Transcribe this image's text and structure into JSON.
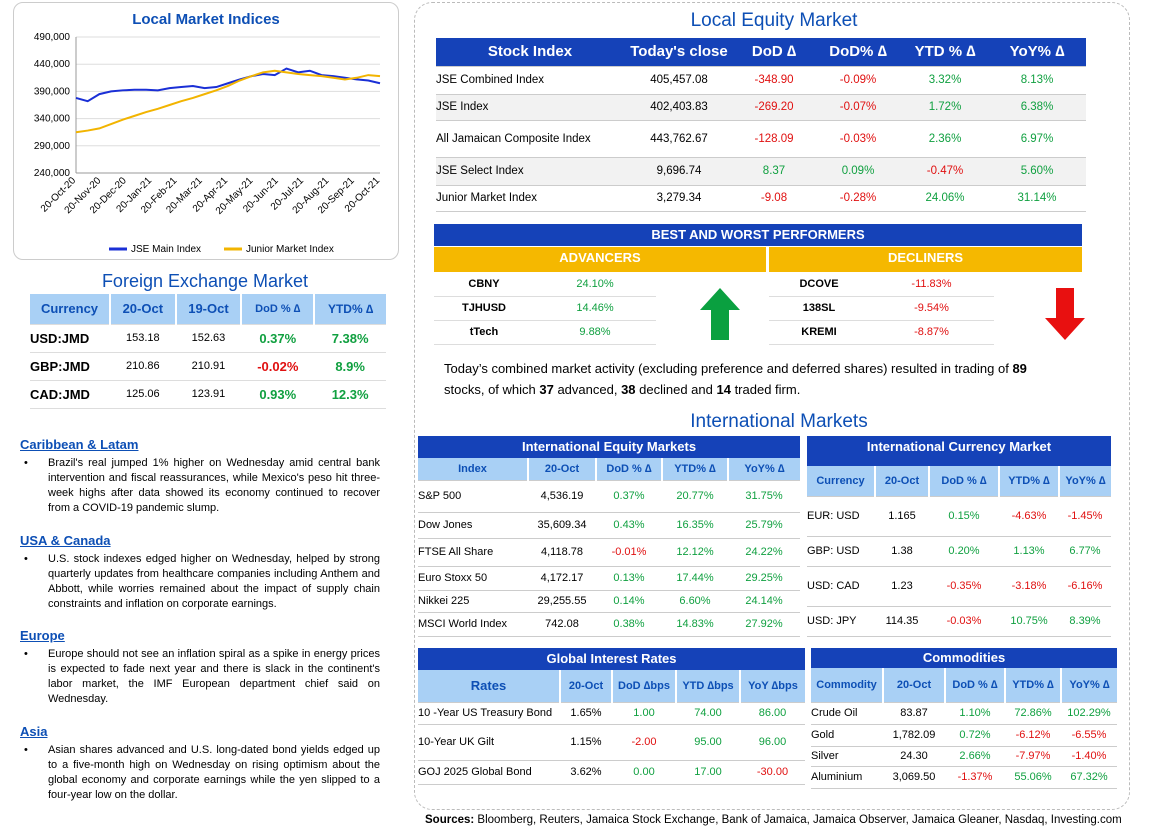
{
  "chart": {
    "title": "Local Market Indices",
    "legend": [
      "JSE Main Index",
      "Junior Market Index"
    ],
    "colors": {
      "main": "#1a2fd6",
      "junior": "#f2b400"
    }
  },
  "chart_data": {
    "type": "line",
    "title": "Local Market Indices",
    "ylim": [
      240000,
      490000
    ],
    "yticks": [
      "490,000",
      "440,000",
      "390,000",
      "340,000",
      "290,000",
      "240,000"
    ],
    "xticks": [
      "20-Oct-20",
      "20-Nov-20",
      "20-Dec-20",
      "20-Jan-21",
      "20-Feb-21",
      "20-Mar-21",
      "20-Apr-21",
      "20-May-21",
      "20-Jun-21",
      "20-Jul-21",
      "20-Aug-21",
      "20-Sep-21",
      "20-Oct-21"
    ],
    "series": [
      {
        "name": "JSE Main Index",
        "values": [
          378000,
          372000,
          385000,
          390000,
          392000,
          393000,
          393000,
          392000,
          396000,
          398000,
          400000,
          396000,
          398000,
          405000,
          412000,
          418000,
          422000,
          420000,
          432000,
          425000,
          428000,
          420000,
          418000,
          415000,
          412000,
          410000,
          405000
        ]
      },
      {
        "name": "Junior Market Index",
        "values": [
          315000,
          318000,
          322000,
          330000,
          338000,
          345000,
          352000,
          358000,
          365000,
          372000,
          378000,
          385000,
          392000,
          400000,
          410000,
          418000,
          425000,
          428000,
          425000,
          422000,
          420000,
          418000,
          415000,
          412000,
          415000,
          420000,
          418000
        ]
      }
    ]
  },
  "fx": {
    "title": "Foreign Exchange Market",
    "headers": [
      "Currency",
      "20-Oct",
      "19-Oct",
      "DoD % ∆",
      "YTD% ∆"
    ],
    "rows": [
      [
        "USD:JMD",
        "153.18",
        "152.63",
        "0.37%",
        "7.38%"
      ],
      [
        "GBP:JMD",
        "210.86",
        "210.91",
        "-0.02%",
        "8.9%"
      ],
      [
        "CAD:JMD",
        "125.06",
        "123.91",
        "0.93%",
        "12.3%"
      ]
    ]
  },
  "news": [
    {
      "title": "Caribbean & Latam",
      "text": "Brazil's real jumped 1% higher on Wednesday amid central bank intervention and fiscal reassurances, while Mexico's peso hit three-week highs after data showed its economy continued to recover from a COVID-19 pandemic slump."
    },
    {
      "title": "USA & Canada",
      "text": "U.S. stock indexes edged higher on Wednesday, helped by strong quarterly updates from healthcare companies including Anthem and Abbott, while worries remained about the impact of supply chain constraints and inflation on corporate earnings."
    },
    {
      "title": "Europe",
      "text": "Europe should not see an inflation spiral as a spike in energy prices is expected to fade next year and there is slack in the continent's labor market, the IMF European department chief said on Wednesday."
    },
    {
      "title": "Asia",
      "text": "Asian shares advanced and U.S. long-dated bond yields edged up to a five-month high on Wednesday on rising optimism about the global economy and corporate earnings while the yen slipped to a four-year low on the dollar."
    }
  ],
  "equity": {
    "title": "Local Equity Market",
    "headers": [
      "Stock Index",
      "Today's close",
      "DoD  ∆",
      "DoD% ∆",
      "YTD % ∆",
      "YoY% ∆"
    ],
    "rows": [
      [
        "JSE Combined Index",
        "405,457.08",
        "-348.90",
        "-0.09%",
        "3.32%",
        "8.13%"
      ],
      [
        "JSE Index",
        "402,403.83",
        "-269.20",
        "-0.07%",
        "1.72%",
        "6.38%"
      ],
      [
        "All Jamaican Composite Index",
        "443,762.67",
        "-128.09",
        "-0.03%",
        "2.36%",
        "6.97%"
      ],
      [
        "JSE Select Index",
        "9,696.74",
        "8.37",
        "0.09%",
        "-0.47%",
        "5.60%"
      ],
      [
        "Junior Market Index",
        "3,279.34",
        "-9.08",
        "-0.28%",
        "24.06%",
        "31.14%"
      ]
    ]
  },
  "performers": {
    "title": "BEST AND WORST PERFORMERS",
    "advancers_label": "ADVANCERS",
    "decliners_label": "DECLINERS",
    "advancers": [
      [
        "CBNY",
        "24.10%"
      ],
      [
        "TJHUSD",
        "14.46%"
      ],
      [
        "tTech",
        "9.88%"
      ]
    ],
    "decliners": [
      [
        "DCOVE",
        "-11.83%"
      ],
      [
        "138SL",
        "-9.54%"
      ],
      [
        "KREMI",
        "-8.87%"
      ]
    ]
  },
  "summary": {
    "p1": "Today’s combined market activity (excluding preference and deferred shares) resulted in trading of ",
    "n1": "89",
    "p2": "stocks, of which ",
    "n2": "37",
    "p3": " advanced, ",
    "n3": "38",
    "p4": " declined and ",
    "n4": "14",
    "p5": " traded firm."
  },
  "intl": {
    "title": "International Markets",
    "equity": {
      "title": "International Equity Markets",
      "headers": [
        "Index",
        "20-Oct",
        "DoD % ∆",
        "YTD% ∆",
        "YoY% ∆"
      ],
      "rows": [
        [
          "S&P 500",
          "4,536.19",
          "0.37%",
          "20.77%",
          "31.75%"
        ],
        [
          "Dow Jones",
          "35,609.34",
          "0.43%",
          "16.35%",
          "25.79%"
        ],
        [
          "FTSE All Share",
          "4,118.78",
          "-0.01%",
          "12.12%",
          "24.22%"
        ],
        [
          "Euro Stoxx 50",
          "4,172.17",
          "0.13%",
          "17.44%",
          "29.25%"
        ],
        [
          "Nikkei 225",
          "29,255.55",
          "0.14%",
          "6.60%",
          "24.14%"
        ],
        [
          "MSCI World Index",
          "742.08",
          "0.38%",
          "14.83%",
          "27.92%"
        ]
      ]
    },
    "currency": {
      "title": "International Currency Market",
      "headers": [
        "Currency",
        "20-Oct",
        "DoD % ∆",
        "YTD% ∆",
        "YoY% ∆"
      ],
      "rows": [
        [
          "EUR: USD",
          "1.165",
          "0.15%",
          "-4.63%",
          "-1.45%"
        ],
        [
          "GBP: USD",
          "1.38",
          "0.20%",
          "1.13%",
          "6.77%"
        ],
        [
          "USD: CAD",
          "1.23",
          "-0.35%",
          "-3.18%",
          "-6.16%"
        ],
        [
          "USD: JPY",
          "114.35",
          "-0.03%",
          "10.75%",
          "8.39%"
        ]
      ]
    },
    "rates": {
      "title": "Global Interest Rates",
      "headers": [
        "Rates",
        "20-Oct",
        "DoD ∆bps",
        "YTD ∆bps",
        "YoY ∆bps"
      ],
      "rows": [
        [
          "10 -Year US Treasury Bond",
          "1.65%",
          "1.00",
          "74.00",
          "86.00"
        ],
        [
          "10-Year UK Gilt",
          "1.15%",
          "-2.00",
          "95.00",
          "96.00"
        ],
        [
          "GOJ 2025 Global Bond",
          "3.62%",
          "0.00",
          "17.00",
          "-30.00"
        ]
      ]
    },
    "commodities": {
      "title": "Commodities",
      "headers": [
        "Commodity",
        "20-Oct",
        "DoD % ∆",
        "YTD% ∆",
        "YoY% ∆"
      ],
      "rows": [
        [
          "Crude Oil",
          "83.87",
          "1.10%",
          "72.86%",
          "102.29%"
        ],
        [
          "Gold",
          "1,782.09",
          "0.72%",
          "-6.12%",
          "-6.55%"
        ],
        [
          "Silver",
          "24.30",
          "2.66%",
          "-7.97%",
          "-1.40%"
        ],
        [
          "Aluminium",
          "3,069.50",
          "-1.37%",
          "55.06%",
          "67.32%"
        ]
      ]
    }
  },
  "sources": {
    "label": "Sources:",
    "text": " Bloomberg, Reuters, Jamaica Stock Exchange, Bank of Jamaica, Jamaica Observer, Jamaica Gleaner, Nasdaq, Investing.com"
  }
}
